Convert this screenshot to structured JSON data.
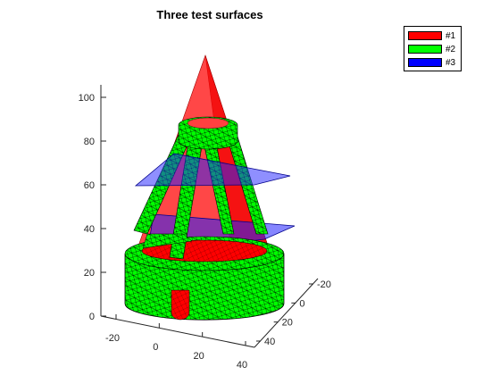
{
  "chart_data": {
    "type": "surface3d",
    "title": "Three test surfaces",
    "z_ticks": [
      "0",
      "20",
      "40",
      "60",
      "80",
      "100"
    ],
    "x_ticks": [
      "-20",
      "0",
      "20",
      "40"
    ],
    "y_ticks": [
      "-20",
      "0",
      "20",
      "40"
    ],
    "zlim": [
      0,
      110
    ],
    "grid": false,
    "legend_placement": "top-right",
    "series": [
      {
        "name": "#1",
        "color": "#ff0000",
        "shape": "cone"
      },
      {
        "name": "#2",
        "color": "#00ff00",
        "shape": "meshed cylinder base with cone frame"
      },
      {
        "name": "#3",
        "color": "#0000ff",
        "shape": "horizontal planes"
      }
    ]
  }
}
